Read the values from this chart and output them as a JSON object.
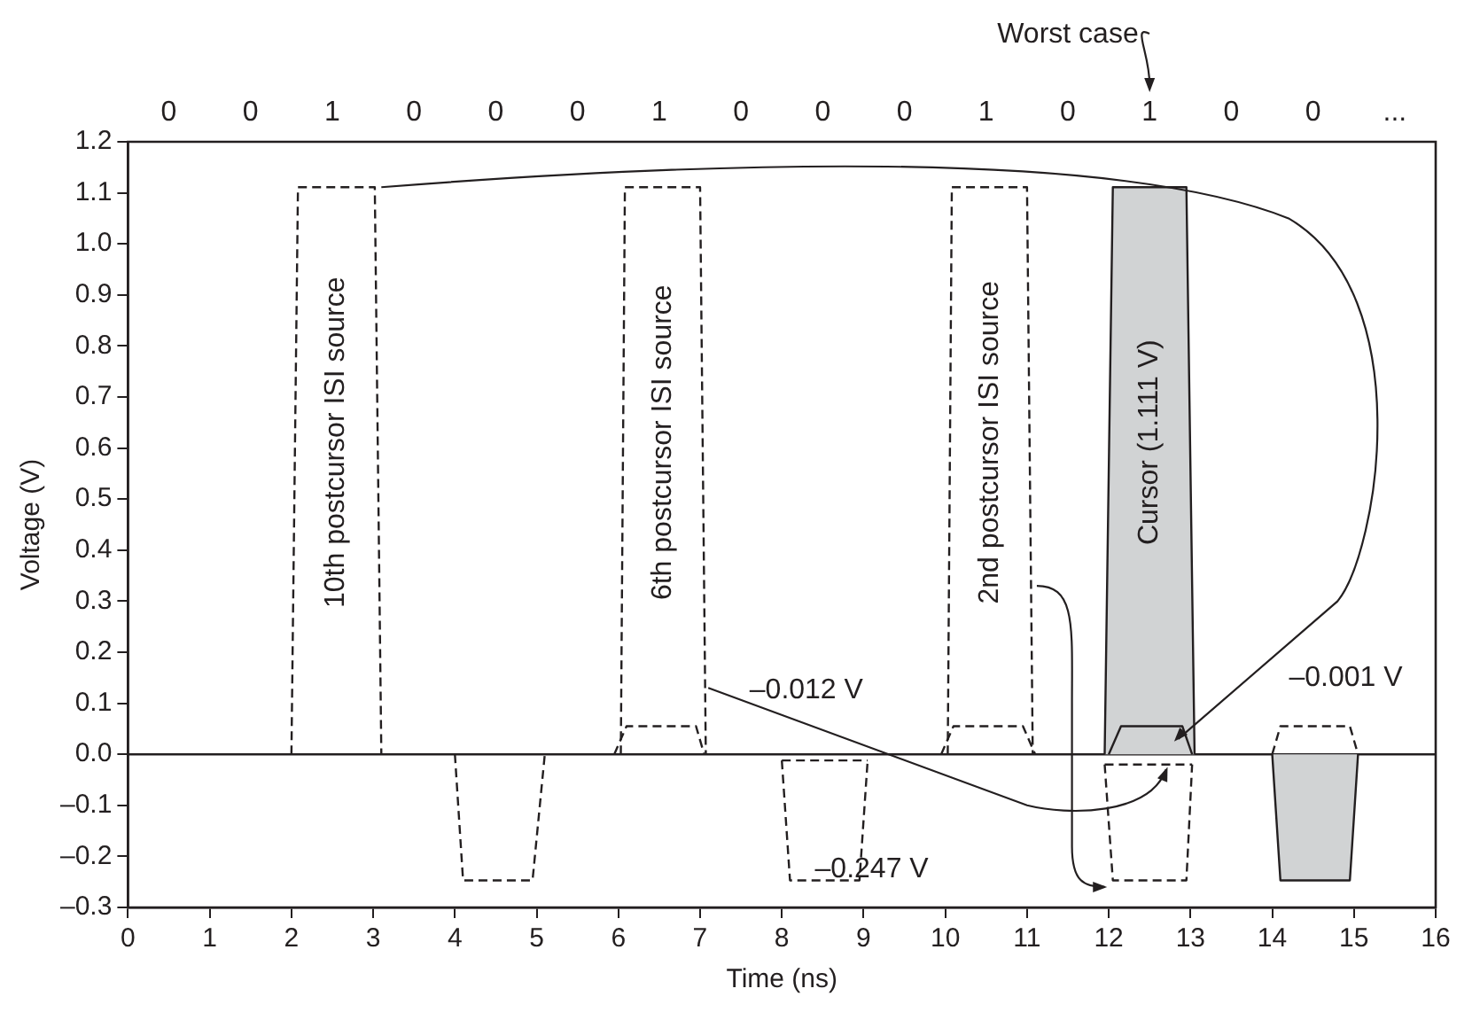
{
  "chart_data": {
    "type": "line",
    "xlabel": "Time (ns)",
    "ylabel": "Voltage (V)",
    "xlim": [
      0,
      16
    ],
    "xticks": [
      0,
      1,
      2,
      3,
      4,
      5,
      6,
      7,
      8,
      9,
      10,
      11,
      12,
      13,
      14,
      15,
      16
    ],
    "ylim": [
      -0.3,
      1.2
    ],
    "yticks": [
      {
        "value": -0.3,
        "label": "–0.3"
      },
      {
        "value": -0.2,
        "label": "–0.2"
      },
      {
        "value": -0.1,
        "label": "–0.1"
      },
      {
        "value": 0,
        "label": "0.0"
      },
      {
        "value": 0.1,
        "label": "0.1"
      },
      {
        "value": 0.2,
        "label": "0.2"
      },
      {
        "value": 0.3,
        "label": "0.3"
      },
      {
        "value": 0.4,
        "label": "0.4"
      },
      {
        "value": 0.5,
        "label": "0.5"
      },
      {
        "value": 0.6,
        "label": "0.6"
      },
      {
        "value": 0.7,
        "label": "0.7"
      },
      {
        "value": 0.8,
        "label": "0.8"
      },
      {
        "value": 0.9,
        "label": "0.9"
      },
      {
        "value": 1,
        "label": "1.0"
      },
      {
        "value": 1.1,
        "label": "1.1"
      },
      {
        "value": 1.2,
        "label": "1.2"
      }
    ],
    "grid": false,
    "legend": false,
    "marker": "none",
    "line_style": "dashed",
    "ref_lines": [
      {
        "axis": "y",
        "value": 0,
        "color": "#231f20",
        "line_style": "solid"
      }
    ],
    "annotations": [
      "Worst case",
      "0",
      "0",
      "1",
      "0",
      "0",
      "0",
      "1",
      "0",
      "0",
      "0",
      "1",
      "0",
      "1",
      "0",
      "0",
      "...",
      "–0.012 V",
      "–0.247 V",
      "–0.001 V"
    ],
    "series": [
      {
        "type": "area",
        "name": "Cursor (1.111 V)",
        "color": "#d1d3d4",
        "line_style": "solid",
        "x": [
          11.95,
          12.05,
          12.95,
          13.05
        ],
        "values": [
          0,
          1.111,
          1.111,
          0
        ]
      },
      {
        "type": "area",
        "color": "#d1d3d4",
        "line_style": "solid",
        "x": [
          14,
          14.1,
          14.95,
          15.05
        ],
        "values": [
          0,
          -0.247,
          -0.247,
          0
        ]
      },
      {
        "name": "10th postcursor ISI source",
        "color": "#231f20",
        "x": [
          2,
          2.08,
          3.02,
          3.1
        ],
        "values": [
          0,
          1.111,
          1.111,
          0
        ]
      },
      {
        "color": "#231f20",
        "x": [
          4,
          4.1,
          4.95,
          5.1
        ],
        "values": [
          0,
          -0.247,
          -0.247,
          0
        ]
      },
      {
        "name": "6th postcursor ISI source",
        "color": "#231f20",
        "x": [
          6.03,
          6.08,
          7,
          7.07
        ],
        "values": [
          0,
          1.111,
          1.111,
          0
        ]
      },
      {
        "color": "#231f20",
        "x": [
          5.95,
          6.1,
          6.95,
          7.05
        ],
        "values": [
          0,
          0.055,
          0.055,
          0
        ]
      },
      {
        "color": "#231f20",
        "x": [
          8,
          8.1,
          8.95,
          9.05
        ],
        "values": [
          -0.012,
          -0.247,
          -0.247,
          -0.012
        ]
      },
      {
        "color": "#231f20",
        "x": [
          8,
          9.05
        ],
        "values": [
          -0.012,
          -0.012
        ]
      },
      {
        "name": "2nd postcursor ISI source",
        "color": "#231f20",
        "x": [
          10.03,
          10.08,
          11,
          11.07
        ],
        "values": [
          0,
          1.111,
          1.111,
          0
        ]
      },
      {
        "color": "#231f20",
        "x": [
          9.95,
          10.1,
          10.95,
          11.1
        ],
        "values": [
          0,
          0.055,
          0.055,
          0
        ]
      },
      {
        "color": "#231f20",
        "line_style": "solid",
        "x": [
          12,
          12.15,
          12.9,
          13.02
        ],
        "values": [
          0,
          0.055,
          0.055,
          0
        ]
      },
      {
        "color": "#231f20",
        "x": [
          11.95,
          12.05,
          12.95,
          13.02
        ],
        "values": [
          -0.02,
          -0.247,
          -0.247,
          -0.02
        ]
      },
      {
        "color": "#231f20",
        "x": [
          11.95,
          13.02
        ],
        "values": [
          -0.02,
          -0.02
        ]
      },
      {
        "color": "#231f20",
        "x": [
          14,
          14.1,
          14.95,
          15.05
        ],
        "values": [
          0,
          0.055,
          0.055,
          0
        ]
      }
    ]
  }
}
